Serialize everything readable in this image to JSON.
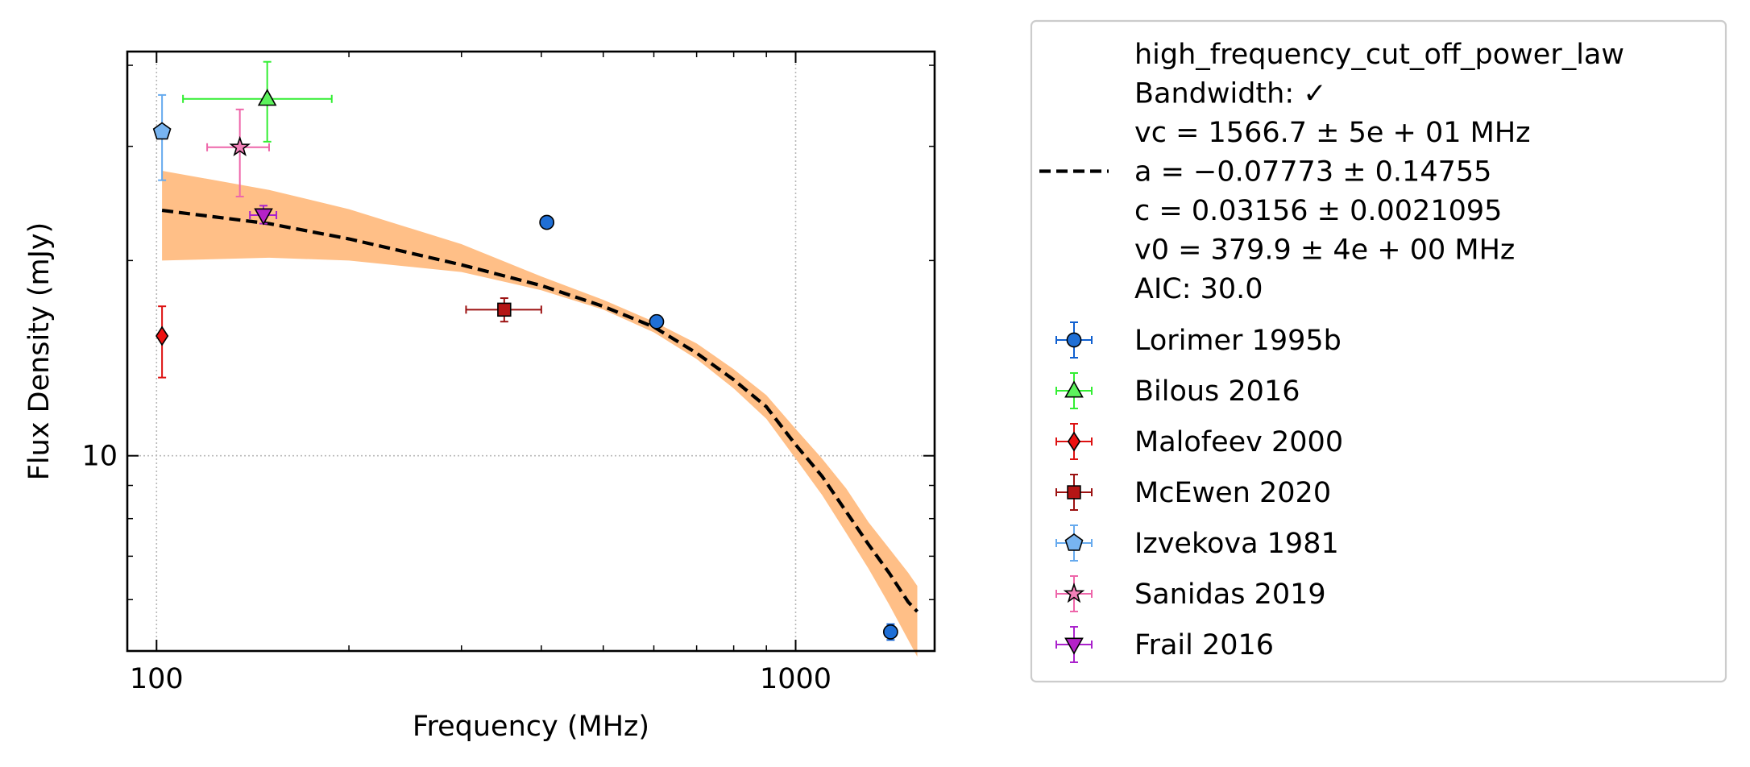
{
  "chart_data": {
    "type": "scatter",
    "xlabel": "Frequency (MHz)",
    "ylabel": "Flux Density (mJy)",
    "x_scale": "log",
    "y_scale": "log",
    "xlim": [
      90,
      1650
    ],
    "ylim": [
      5.0,
      42
    ],
    "x_ticks": [
      {
        "value": 100,
        "label": "100"
      },
      {
        "value": 1000,
        "label": "1000"
      }
    ],
    "y_ticks": [
      {
        "value": 10,
        "label": "10"
      }
    ],
    "grid": "major dotted",
    "legend_position": "outside right",
    "fit": {
      "model": "high_frequency_cut_off_power_law",
      "color": "#000000",
      "band_color": "#ffbf87",
      "vc": 1566.7,
      "a": -0.07773,
      "c": 0.03156,
      "v0": 379.9,
      "label_lines": [
        "high_frequency_cut_off_power_law",
        "Bandwidth: ✓",
        "vc = 1566.7 ± 5e + 01 MHz",
        "a = −0.07773 ± 0.14755",
        "c = 0.03156 ± 0.0021095",
        "v0 = 379.9 ± 4e + 00 MHz",
        "AIC: 30.0"
      ],
      "x_range": [
        102,
        1550
      ],
      "curve": [
        {
          "x": 102,
          "y": 23.9
        },
        {
          "x": 150,
          "y": 22.8
        },
        {
          "x": 200,
          "y": 21.6
        },
        {
          "x": 300,
          "y": 19.7
        },
        {
          "x": 400,
          "y": 18.3
        },
        {
          "x": 500,
          "y": 17.0
        },
        {
          "x": 600,
          "y": 15.8
        },
        {
          "x": 700,
          "y": 14.4
        },
        {
          "x": 800,
          "y": 13.1
        },
        {
          "x": 900,
          "y": 11.9
        },
        {
          "x": 1000,
          "y": 10.4
        },
        {
          "x": 1100,
          "y": 9.3
        },
        {
          "x": 1200,
          "y": 8.2
        },
        {
          "x": 1300,
          "y": 7.3
        },
        {
          "x": 1400,
          "y": 6.6
        },
        {
          "x": 1500,
          "y": 5.95
        },
        {
          "x": 1550,
          "y": 5.75
        }
      ],
      "band": [
        {
          "x": 102,
          "lo": 20.0,
          "hi": 27.5
        },
        {
          "x": 150,
          "lo": 20.2,
          "hi": 25.7
        },
        {
          "x": 200,
          "lo": 20.0,
          "hi": 24.0
        },
        {
          "x": 300,
          "lo": 19.2,
          "hi": 21.2
        },
        {
          "x": 400,
          "lo": 18.0,
          "hi": 18.9
        },
        {
          "x": 500,
          "lo": 16.8,
          "hi": 17.4
        },
        {
          "x": 600,
          "lo": 15.5,
          "hi": 16.1
        },
        {
          "x": 700,
          "lo": 14.1,
          "hi": 14.9
        },
        {
          "x": 800,
          "lo": 12.7,
          "hi": 13.6
        },
        {
          "x": 900,
          "lo": 11.4,
          "hi": 12.4
        },
        {
          "x": 1000,
          "lo": 9.9,
          "hi": 11.0
        },
        {
          "x": 1100,
          "lo": 8.7,
          "hi": 9.9
        },
        {
          "x": 1200,
          "lo": 7.6,
          "hi": 8.9
        },
        {
          "x": 1300,
          "lo": 6.7,
          "hi": 7.9
        },
        {
          "x": 1400,
          "lo": 5.9,
          "hi": 7.2
        },
        {
          "x": 1500,
          "lo": 5.2,
          "hi": 6.6
        },
        {
          "x": 1550,
          "lo": 4.9,
          "hi": 6.3
        }
      ]
    },
    "series": [
      {
        "name": "Lorimer 1995b",
        "marker": "circle",
        "color": "#1f6fd6",
        "errcolor": "#1060d0",
        "points": [
          {
            "x": 408,
            "y": 22.9,
            "xlo": 408,
            "xhi": 408,
            "ylo": 22.6,
            "yhi": 23.2
          },
          {
            "x": 606,
            "y": 16.1,
            "xlo": 606,
            "xhi": 606,
            "ylo": 15.9,
            "yhi": 16.3
          },
          {
            "x": 1408,
            "y": 5.35,
            "xlo": 1408,
            "xhi": 1408,
            "ylo": 5.2,
            "yhi": 5.5
          }
        ]
      },
      {
        "name": "Bilous 2016",
        "marker": "triangle-up",
        "color": "#5cf25c",
        "errcolor": "#33ee33",
        "points": [
          {
            "x": 149,
            "y": 35.5,
            "xlo": 110,
            "xhi": 188,
            "ylo": 30.5,
            "yhi": 40.5
          }
        ]
      },
      {
        "name": "Malofeev 2000",
        "marker": "diamond",
        "color": "#ee1111",
        "errcolor": "#dd1111",
        "points": [
          {
            "x": 102,
            "y": 15.3,
            "xlo": 102,
            "xhi": 102,
            "ylo": 13.2,
            "yhi": 17.0
          }
        ]
      },
      {
        "name": "McEwen 2020",
        "marker": "square",
        "color": "#b51515",
        "errcolor": "#9c1212",
        "points": [
          {
            "x": 350,
            "y": 16.8,
            "xlo": 305,
            "xhi": 400,
            "ylo": 16.1,
            "yhi": 17.5
          }
        ]
      },
      {
        "name": "Izvekova 1981",
        "marker": "pentagon",
        "color": "#78b4f0",
        "errcolor": "#66aaee",
        "points": [
          {
            "x": 102,
            "y": 31.6,
            "xlo": 102,
            "xhi": 102,
            "ylo": 26.6,
            "yhi": 36.0
          }
        ]
      },
      {
        "name": "Sanidas 2019",
        "marker": "star",
        "color": "#f280b8",
        "errcolor": "#ee66aa",
        "points": [
          {
            "x": 135,
            "y": 29.9,
            "xlo": 120,
            "xhi": 150,
            "ylo": 25.1,
            "yhi": 34.2
          }
        ]
      },
      {
        "name": "Frail 2016",
        "marker": "triangle-down",
        "color": "#b521c8",
        "errcolor": "#aa22cc",
        "points": [
          {
            "x": 147,
            "y": 23.5,
            "xlo": 140,
            "xhi": 154,
            "ylo": 22.8,
            "yhi": 24.3
          }
        ]
      }
    ]
  }
}
